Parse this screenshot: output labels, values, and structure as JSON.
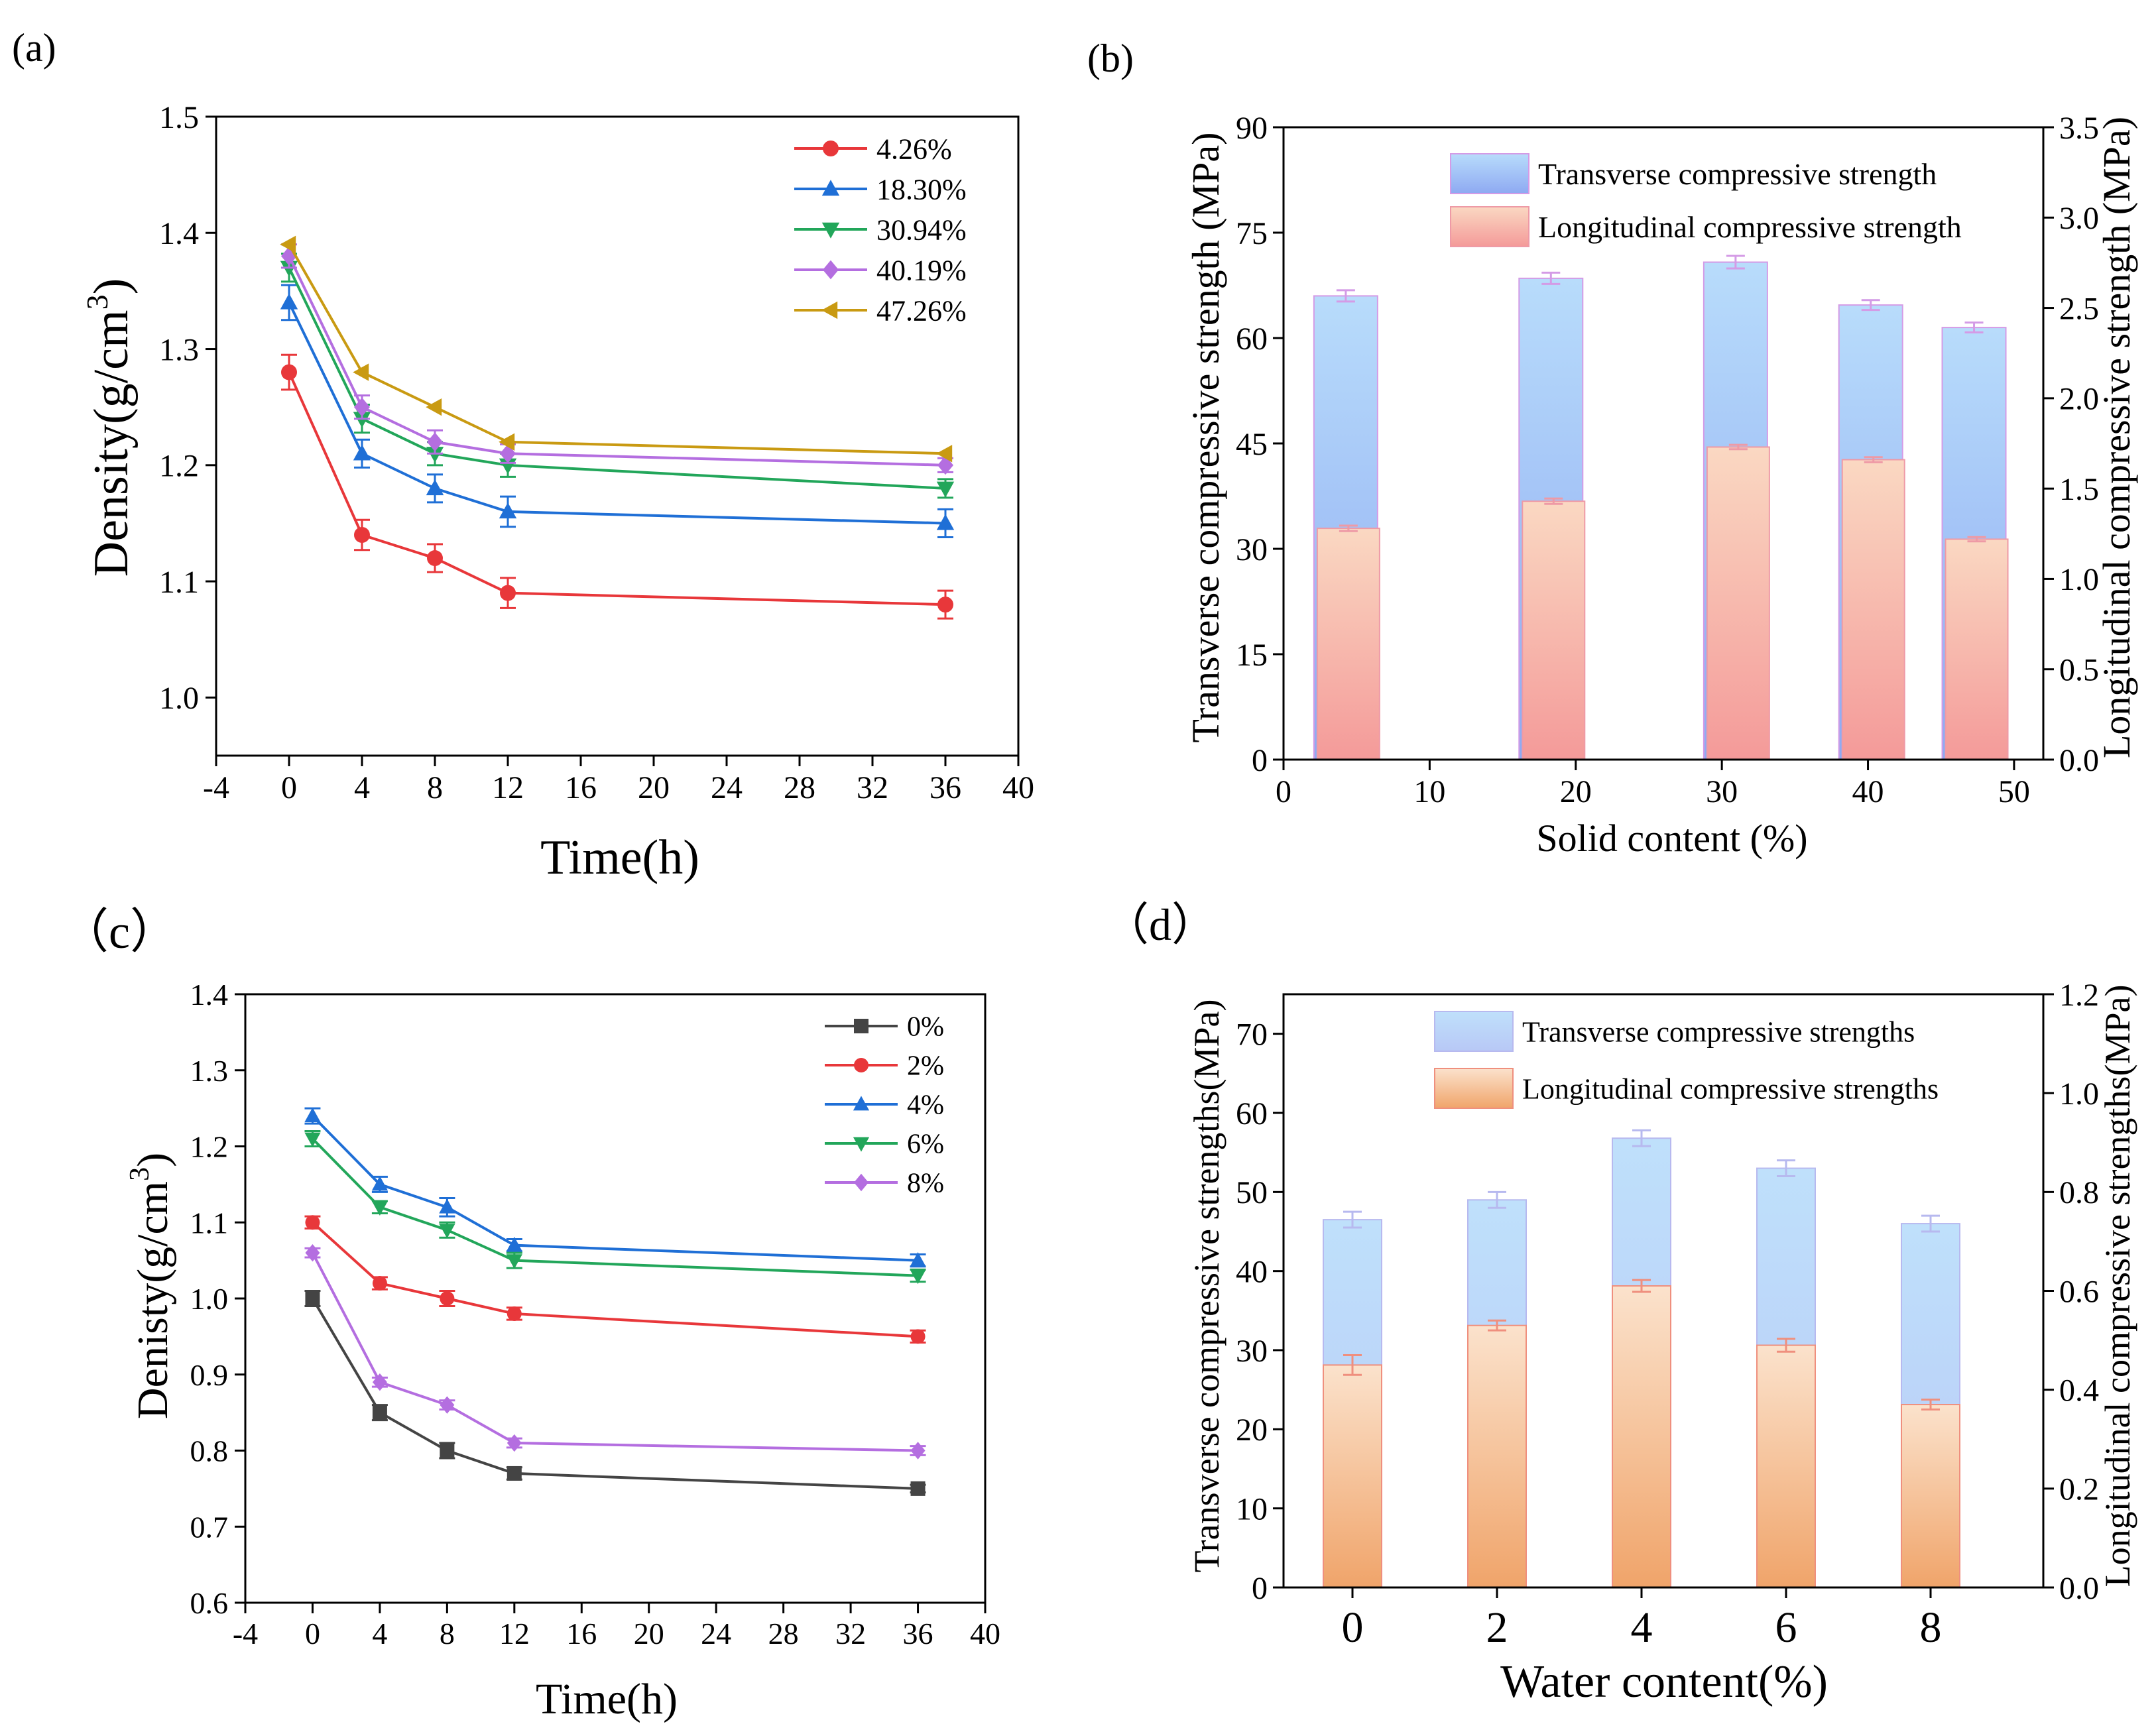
{
  "colors": {
    "red": "#e8373a",
    "blue": "#1f6fd6",
    "green": "#22a65a",
    "violet": "#b46ee0",
    "gold": "#c99a12",
    "gray": "#444444",
    "barBlue": "#a9cdf6",
    "barPink": "#f7b2aa",
    "barOrange": "#f2ab78"
  },
  "chart_data": [
    {
      "id": "a",
      "type": "line",
      "panel_label": "(a)",
      "xlabel": "Time(h)",
      "ylabel": "Density(g/cm",
      "ylabel_sup": "3",
      "ylabel_close": ")",
      "xlim": [
        -4,
        40
      ],
      "ylim": [
        0.95,
        1.5
      ],
      "xticks": [
        -4,
        0,
        4,
        8,
        12,
        16,
        20,
        24,
        28,
        32,
        36,
        40
      ],
      "yticks": [
        "1.0",
        "1.1",
        "1.2",
        "1.3",
        "1.4",
        "1.5"
      ],
      "x": [
        0,
        4,
        8,
        12,
        36
      ],
      "series": [
        {
          "name": "4.26%",
          "marker": "circle",
          "color": "#e8373a",
          "values": [
            1.28,
            1.14,
            1.12,
            1.09,
            1.08
          ],
          "errors": [
            0.015,
            0.013,
            0.012,
            0.013,
            0.012
          ]
        },
        {
          "name": "18.30%",
          "marker": "triangle-up",
          "color": "#1f6fd6",
          "values": [
            1.34,
            1.21,
            1.18,
            1.16,
            1.15
          ],
          "errors": [
            0.015,
            0.012,
            0.012,
            0.013,
            0.012
          ]
        },
        {
          "name": "30.94%",
          "marker": "triangle-down",
          "color": "#22a65a",
          "values": [
            1.37,
            1.24,
            1.21,
            1.2,
            1.18
          ],
          "errors": [
            0.012,
            0.012,
            0.01,
            0.01,
            0.008
          ]
        },
        {
          "name": "40.19%",
          "marker": "diamond",
          "color": "#b46ee0",
          "values": [
            1.38,
            1.25,
            1.22,
            1.21,
            1.2
          ],
          "errors": [
            0.01,
            0.01,
            0.01,
            0.008,
            0.006
          ]
        },
        {
          "name": "47.26%",
          "marker": "triangle-left",
          "color": "#c99a12",
          "values": [
            1.39,
            1.28,
            1.25,
            1.22,
            1.21
          ],
          "errors": [
            0,
            0,
            0,
            0,
            0
          ]
        }
      ],
      "legend_position": "top-right"
    },
    {
      "id": "b",
      "type": "bar",
      "panel_label": "(b)",
      "xlabel": "Solid content (%)",
      "ylabel_left": "Transverse compressive strength (MPa)",
      "ylabel_right": "Longitudinal compressive strength (MPa)",
      "xlim": [
        0,
        52
      ],
      "xticks": [
        0,
        10,
        20,
        30,
        40,
        50
      ],
      "ylim_left": [
        0,
        90
      ],
      "yticks_left": [
        0,
        15,
        30,
        45,
        60,
        75,
        90
      ],
      "ylim_right": [
        0,
        3.5
      ],
      "yticks_right": [
        "0.0",
        "0.5",
        "1.0",
        "1.5",
        "2.0",
        "2.5",
        "3.0",
        "3.5"
      ],
      "categories": [
        4.26,
        18.3,
        30.94,
        40.19,
        47.26
      ],
      "series": [
        {
          "name": "Transverse compressive strength",
          "axis": "left",
          "values": [
            66,
            68.5,
            70.8,
            64.7,
            61.5
          ],
          "errors": [
            0.8,
            0.8,
            0.9,
            0.7,
            0.7
          ]
        },
        {
          "name": "Longitudinal compressive strength",
          "axis": "right",
          "values": [
            1.28,
            1.43,
            1.73,
            1.66,
            1.22
          ],
          "errors": [
            0.015,
            0.015,
            0.012,
            0.014,
            0.012
          ]
        }
      ],
      "legend_position": "top-right"
    },
    {
      "id": "c",
      "type": "line",
      "panel_label": "（c）",
      "xlabel": "Time(h)",
      "ylabel": "Denisty(g/cm",
      "ylabel_sup": "3",
      "ylabel_close": ")",
      "xlim": [
        -4,
        40
      ],
      "ylim": [
        0.6,
        1.4
      ],
      "xticks": [
        -4,
        0,
        4,
        8,
        12,
        16,
        20,
        24,
        28,
        32,
        36,
        40
      ],
      "yticks": [
        "0.6",
        "0.7",
        "0.8",
        "0.9",
        "1.0",
        "1.1",
        "1.2",
        "1.3",
        "1.4"
      ],
      "x": [
        0,
        4,
        8,
        12,
        36
      ],
      "series": [
        {
          "name": "0%",
          "marker": "square",
          "color": "#444444",
          "values": [
            1.0,
            0.85,
            0.8,
            0.77,
            0.75
          ],
          "errors": [
            0.01,
            0.01,
            0.01,
            0.008,
            0.005
          ]
        },
        {
          "name": "2%",
          "marker": "circle",
          "color": "#e8373a",
          "values": [
            1.1,
            1.02,
            1.0,
            0.98,
            0.95
          ],
          "errors": [
            0.008,
            0.008,
            0.01,
            0.008,
            0.008
          ]
        },
        {
          "name": "4%",
          "marker": "triangle-up",
          "color": "#1f6fd6",
          "values": [
            1.24,
            1.15,
            1.12,
            1.07,
            1.05
          ],
          "errors": [
            0.01,
            0.01,
            0.012,
            0.008,
            0.008
          ]
        },
        {
          "name": "6%",
          "marker": "triangle-down",
          "color": "#22a65a",
          "values": [
            1.21,
            1.12,
            1.09,
            1.05,
            1.03
          ],
          "errors": [
            0.01,
            0.008,
            0.01,
            0.01,
            0.008
          ]
        },
        {
          "name": "8%",
          "marker": "diamond",
          "color": "#b46ee0",
          "values": [
            1.06,
            0.89,
            0.86,
            0.81,
            0.8
          ],
          "errors": [
            0.006,
            0.006,
            0.006,
            0.006,
            0.006
          ]
        }
      ],
      "legend_position": "top-right"
    },
    {
      "id": "d",
      "type": "bar",
      "panel_label": "（d）",
      "xlabel": "Water content(%)",
      "ylabel_left": "Transverse compressive strengths(MPa)",
      "ylabel_right": "Longitudinal compressive strengths(MPa)",
      "ylim_left": [
        0,
        75
      ],
      "yticks_left": [
        0,
        10,
        20,
        30,
        40,
        50,
        60,
        70
      ],
      "ylim_right": [
        0,
        1.2
      ],
      "yticks_right": [
        "0.0",
        "0.2",
        "0.4",
        "0.6",
        "0.8",
        "1.0",
        "1.2"
      ],
      "categories": [
        "0",
        "2",
        "4",
        "6",
        "8"
      ],
      "series": [
        {
          "name": "Transverse compressive strengths",
          "axis": "left",
          "values": [
            46.5,
            49,
            56.8,
            53,
            46
          ],
          "errors": [
            1,
            1,
            1,
            1,
            1
          ]
        },
        {
          "name": "Longitudinal compressive strengths",
          "axis": "right",
          "values": [
            0.45,
            0.53,
            0.61,
            0.49,
            0.37
          ],
          "errors": [
            0.02,
            0.01,
            0.012,
            0.013,
            0.01
          ]
        }
      ],
      "legend_position": "top-right"
    }
  ]
}
